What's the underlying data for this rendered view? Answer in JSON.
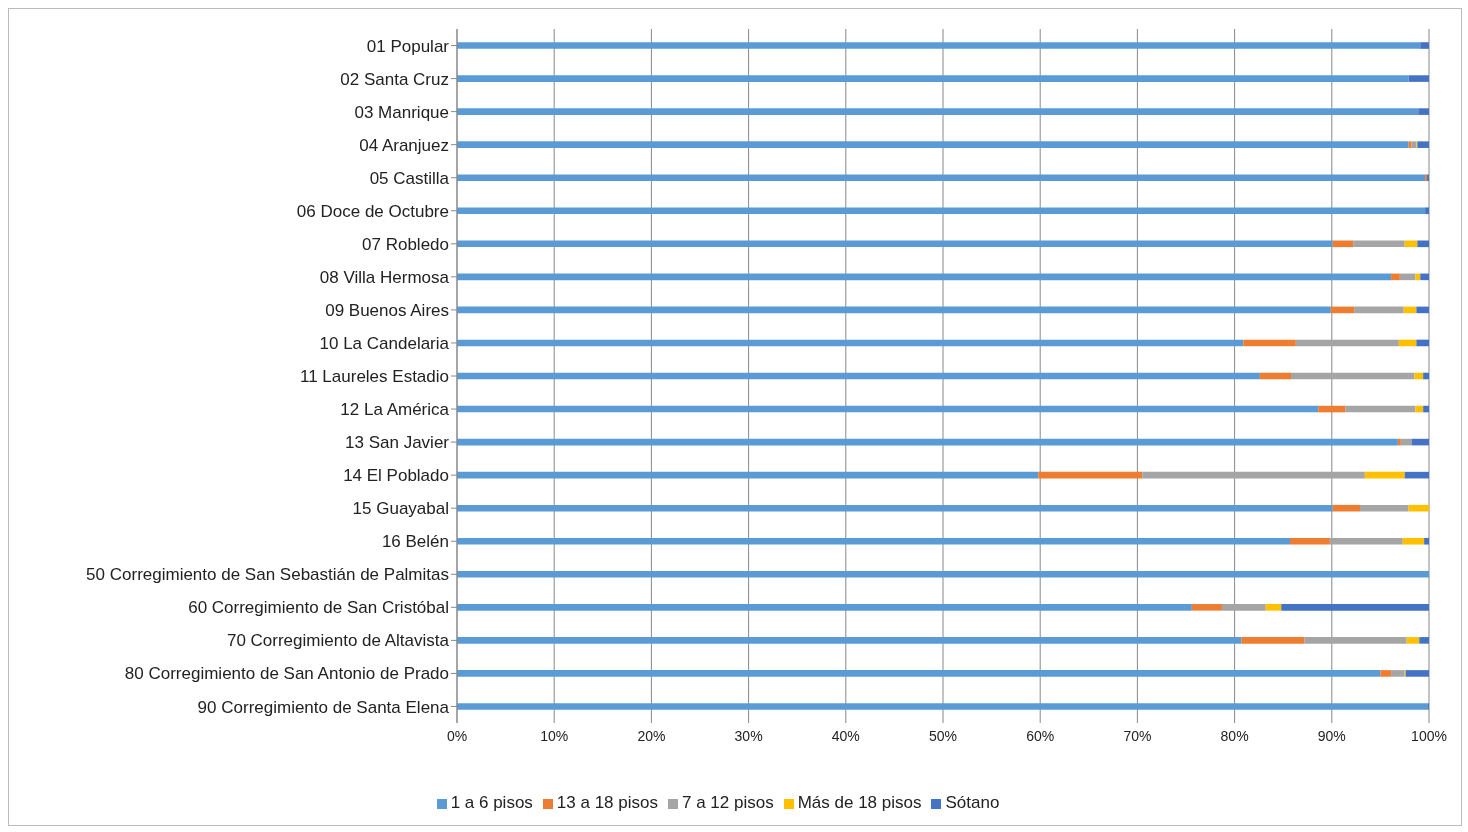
{
  "chart_data": {
    "type": "bar",
    "orientation": "horizontal",
    "stacked": true,
    "categories": [
      "01 Popular",
      "02 Santa Cruz",
      "03 Manrique",
      "04 Aranjuez",
      "05 Castilla",
      "06 Doce de Octubre",
      "07 Robledo",
      "08 Villa Hermosa",
      "09 Buenos Aires",
      "10 La Candelaria",
      "11 Laureles Estadio",
      "12 La América",
      "13 San Javier",
      "14 El Poblado",
      "15 Guayabal",
      "16 Belén",
      "50 Corregimiento de San Sebastián de Palmitas",
      "60 Corregimiento de San Cristóbal",
      "70 Corregimiento de Altavista",
      "80 Corregimiento de San Antonio de Prado",
      "90 Corregimiento de Santa Elena"
    ],
    "series": [
      {
        "name": "1 a 6 pisos",
        "color": "#5b9bd5",
        "values": [
          99.1,
          97.9,
          98.9,
          97.9,
          99.6,
          99.6,
          90.1,
          96.1,
          89.9,
          80.9,
          82.6,
          88.6,
          96.8,
          59.8,
          90.1,
          85.7,
          100,
          75.6,
          80.7,
          95.0,
          99.9
        ]
      },
      {
        "name": "13 a 18 pisos",
        "color": "#ed7d31",
        "values": [
          0,
          0,
          0,
          0.3,
          0.2,
          0,
          2.1,
          0.9,
          2.4,
          5.4,
          3.2,
          2.8,
          0.3,
          10.7,
          2.8,
          4.1,
          0,
          3.1,
          6.5,
          1.1,
          0
        ]
      },
      {
        "name": "7 a 12 pisos",
        "color": "#a5a5a5",
        "values": [
          0,
          0,
          0,
          0.5,
          0,
          0,
          5.3,
          1.6,
          5.1,
          10.6,
          12.7,
          7.2,
          1.1,
          22.9,
          5.0,
          7.5,
          0,
          4.5,
          10.5,
          1.4,
          0
        ]
      },
      {
        "name": "Más de 18 pisos",
        "color": "#ffc000",
        "values": [
          0,
          0,
          0,
          0.1,
          0,
          0,
          1.3,
          0.5,
          1.3,
          1.8,
          0.9,
          0.8,
          0,
          4.1,
          2.1,
          2.2,
          0,
          1.6,
          1.3,
          0.1,
          0
        ]
      },
      {
        "name": "Sótano",
        "color": "#4472c4",
        "values": [
          0.9,
          2.1,
          1.1,
          1.2,
          0.2,
          0.4,
          1.2,
          0.9,
          1.3,
          1.3,
          0.6,
          0.6,
          1.8,
          2.5,
          0,
          0.5,
          0,
          15.2,
          1.0,
          2.4,
          0.1
        ]
      }
    ],
    "xlim": [
      0,
      100
    ],
    "xticks": [
      {
        "value": 0,
        "label": "0%"
      },
      {
        "value": 10,
        "label": "10%"
      },
      {
        "value": 20,
        "label": "20%"
      },
      {
        "value": 30,
        "label": "30%"
      },
      {
        "value": 40,
        "label": "40%"
      },
      {
        "value": 50,
        "label": "50%"
      },
      {
        "value": 60,
        "label": "60%"
      },
      {
        "value": 70,
        "label": "70%"
      },
      {
        "value": 80,
        "label": "80%"
      },
      {
        "value": 90,
        "label": "90%"
      },
      {
        "value": 100,
        "label": "100%"
      }
    ],
    "grid": "x",
    "legend": "bottom"
  }
}
